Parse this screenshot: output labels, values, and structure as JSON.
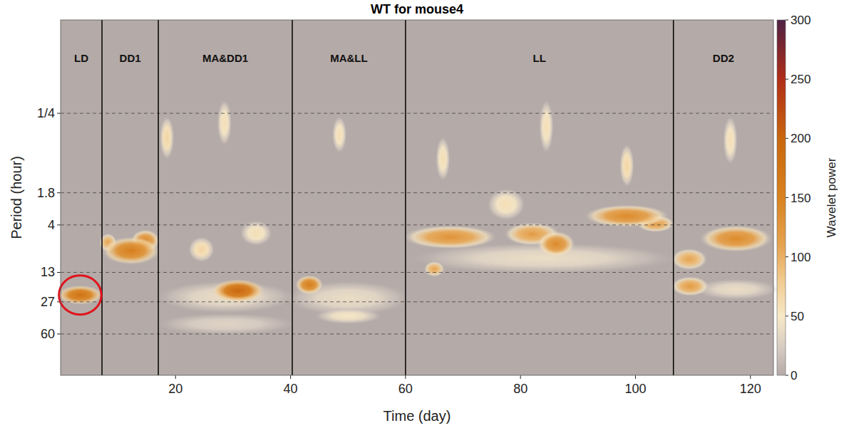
{
  "chart_data": {
    "type": "heatmap",
    "title": "WT for mouse4",
    "x_label": "Time (day)",
    "y_label": "Period (hour)",
    "xlim": [
      0,
      124
    ],
    "ylim": [
      0.0246,
      167.5
    ],
    "xticks": [
      20,
      40,
      60,
      80,
      100,
      120
    ],
    "yticks": [
      {
        "value": 0.25,
        "label": "1/4"
      },
      1.8,
      4,
      13,
      27,
      60
    ],
    "log": "y",
    "grid": true,
    "phases": [
      {
        "label": "LD",
        "start": 0,
        "end": 7.2
      },
      {
        "label": "DD1",
        "start": 7.2,
        "end": 17
      },
      {
        "label": "MA&DD1",
        "start": 17,
        "end": 40.3
      },
      {
        "label": "MA&LL",
        "start": 40.3,
        "end": 60
      },
      {
        "label": "LL",
        "start": 60,
        "end": 106.6
      },
      {
        "label": "DD2",
        "start": 106.6,
        "end": 124
      }
    ],
    "cells": [
      {
        "day": [
          0.2,
          6.6
        ],
        "period": [
          20,
          26
        ],
        "power": 180
      },
      {
        "day": [
          17.5,
          40
        ],
        "period": [
          40,
          55
        ],
        "power": 30
      },
      {
        "day": [
          17.5,
          40
        ],
        "period": [
          18,
          32
        ],
        "power": 40
      },
      {
        "day": [
          40,
          60
        ],
        "period": [
          18,
          34
        ],
        "power": 40
      },
      {
        "day": [
          62,
          106
        ],
        "period": [
          7,
          12
        ],
        "power": 40
      },
      {
        "day": [
          111,
          124
        ],
        "period": [
          17,
          23
        ],
        "power": 40
      },
      {
        "day": [
          45,
          55
        ],
        "period": [
          35,
          42
        ],
        "power": 50
      },
      {
        "day": [
          32,
          36
        ],
        "period": [
          4,
          6
        ],
        "power": 60
      },
      {
        "day": [
          23,
          26
        ],
        "period": [
          6,
          9
        ],
        "power": 70
      },
      {
        "day": [
          18,
          19
        ],
        "period": [
          0.3,
          0.7
        ],
        "power": 70
      },
      {
        "day": [
          28,
          29
        ],
        "period": [
          0.2,
          0.5
        ],
        "power": 60
      },
      {
        "day": [
          48,
          49
        ],
        "period": [
          0.3,
          0.6
        ],
        "power": 60
      },
      {
        "day": [
          66,
          67
        ],
        "period": [
          0.5,
          1.2
        ],
        "power": 60
      },
      {
        "day": [
          84,
          85
        ],
        "period": [
          0.2,
          0.6
        ],
        "power": 60
      },
      {
        "day": [
          98,
          99
        ],
        "period": [
          0.6,
          1.4
        ],
        "power": 70
      },
      {
        "day": [
          116,
          117
        ],
        "period": [
          0.3,
          0.8
        ],
        "power": 60
      },
      {
        "day": [
          75,
          80
        ],
        "period": [
          1.8,
          3.2
        ],
        "power": 60
      },
      {
        "day": [
          7.5,
          9
        ],
        "period": [
          5.5,
          7
        ],
        "power": 110
      },
      {
        "day": [
          64,
          66
        ],
        "period": [
          11,
          13
        ],
        "power": 110
      },
      {
        "day": [
          107,
          111.7
        ],
        "period": [
          8,
          11
        ],
        "power": 110
      },
      {
        "day": [
          78,
          86
        ],
        "period": [
          4.2,
          6
        ],
        "power": 120
      },
      {
        "day": [
          101,
          106
        ],
        "period": [
          3.5,
          4.3
        ],
        "power": 120
      },
      {
        "day": [
          107,
          112
        ],
        "period": [
          16,
          21
        ],
        "power": 120
      },
      {
        "day": [
          60.5,
          75
        ],
        "period": [
          4.5,
          6.5
        ],
        "power": 130
      },
      {
        "day": [
          13,
          16.5
        ],
        "period": [
          5,
          7
        ],
        "power": 140
      },
      {
        "day": [
          83.7,
          88.7
        ],
        "period": [
          5.2,
          8
        ],
        "power": 140
      },
      {
        "day": [
          92,
          105
        ],
        "period": [
          2.7,
          3.8
        ],
        "power": 140
      },
      {
        "day": [
          112,
          123
        ],
        "period": [
          4.5,
          7
        ],
        "power": 140
      },
      {
        "day": [
          8,
          16.5
        ],
        "period": [
          6,
          9.6
        ],
        "power": 160
      },
      {
        "day": [
          41.6,
          44.9
        ],
        "period": [
          15.5,
          20.2
        ],
        "power": 160
      },
      {
        "day": [
          27,
          34.7
        ],
        "period": [
          17.2,
          24.5
        ],
        "power": 200
      }
    ],
    "colorbar": {
      "label": "Wavelet power",
      "range": [
        0,
        300
      ],
      "ticks": [
        0,
        50,
        100,
        150,
        200,
        250,
        300
      ]
    }
  }
}
